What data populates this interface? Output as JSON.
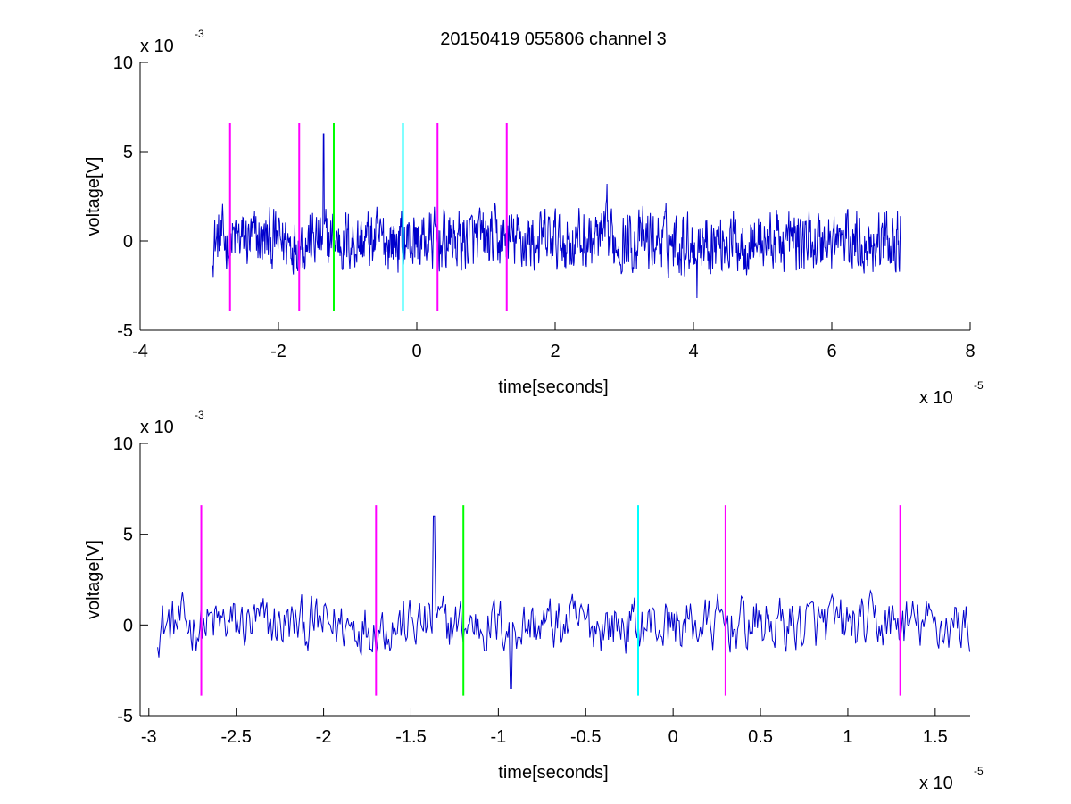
{
  "figure": {
    "title": "20150419 055806 channel 3",
    "background": "#ffffff"
  },
  "colors": {
    "signal": "#0000cc",
    "marker_magenta": "#ff00ff",
    "marker_green": "#00ff00",
    "marker_cyan": "#00ffff",
    "axes": "#000000"
  },
  "chart_data": [
    {
      "type": "line",
      "title": "20150419 055806 channel 3",
      "xlabel": "time[seconds]",
      "ylabel": "voltage[V]",
      "x_exponent_label": "x 10",
      "x_exponent": "-5",
      "y_exponent_label": "x 10",
      "y_exponent": "-3",
      "xlim": [
        -4,
        8
      ],
      "ylim": [
        -5,
        10
      ],
      "x_ticks": [
        -4,
        -2,
        0,
        2,
        4,
        6,
        8
      ],
      "x_tick_labels": [
        "-4",
        "-2",
        "0",
        "2",
        "4",
        "6",
        "8"
      ],
      "y_ticks": [
        -5,
        0,
        5,
        10
      ],
      "y_tick_labels": [
        "-5",
        "0",
        "5",
        "10"
      ],
      "grid": false,
      "series": [
        {
          "color": "#0000cc",
          "x_range": [
            -2.95,
            7.0
          ],
          "baseline": 0.0,
          "noise_std": 0.9,
          "notable_peaks": [
            {
              "x": -1.35,
              "y": 6.0
            },
            {
              "x": 2.75,
              "y": 3.2
            },
            {
              "x": 4.05,
              "y": -3.2
            }
          ]
        }
      ],
      "markers": [
        {
          "x": -2.7,
          "color": "magenta",
          "y_range": [
            -3.9,
            6.6
          ]
        },
        {
          "x": -1.7,
          "color": "magenta",
          "y_range": [
            -3.9,
            6.6
          ]
        },
        {
          "x": -1.2,
          "color": "green",
          "y_range": [
            -3.9,
            6.6
          ]
        },
        {
          "x": -0.2,
          "color": "cyan",
          "y_range": [
            -3.9,
            6.6
          ]
        },
        {
          "x": 0.3,
          "color": "magenta",
          "y_range": [
            -3.9,
            6.6
          ]
        },
        {
          "x": 1.3,
          "color": "magenta",
          "y_range": [
            -3.9,
            6.6
          ]
        }
      ]
    },
    {
      "type": "line",
      "title": "",
      "xlabel": "time[seconds]",
      "ylabel": "voltage[V]",
      "x_exponent_label": "x 10",
      "x_exponent": "-5",
      "y_exponent_label": "x 10",
      "y_exponent": "-3",
      "xlim": [
        -3.05,
        1.7
      ],
      "ylim": [
        -5,
        10
      ],
      "x_ticks": [
        -3,
        -2.5,
        -2,
        -1.5,
        -1,
        -0.5,
        0,
        0.5,
        1,
        1.5
      ],
      "x_tick_labels": [
        "-3",
        "-2.5",
        "-2",
        "-1.5",
        "-1",
        "-0.5",
        "0",
        "0.5",
        "1",
        "1.5"
      ],
      "y_ticks": [
        -5,
        0,
        5,
        10
      ],
      "y_tick_labels": [
        "-5",
        "0",
        "5",
        "10"
      ],
      "grid": false,
      "series": [
        {
          "color": "#0000cc",
          "x_range": [
            -2.95,
            1.7
          ],
          "baseline": 0.0,
          "noise_std": 0.8,
          "notable_peaks": [
            {
              "x": -1.37,
              "y": 6.0
            },
            {
              "x": -0.93,
              "y": -3.5
            }
          ]
        }
      ],
      "markers": [
        {
          "x": -2.7,
          "color": "magenta",
          "y_range": [
            -3.9,
            6.6
          ]
        },
        {
          "x": -1.7,
          "color": "magenta",
          "y_range": [
            -3.9,
            6.6
          ]
        },
        {
          "x": -1.2,
          "color": "green",
          "y_range": [
            -3.9,
            6.6
          ]
        },
        {
          "x": -0.2,
          "color": "cyan",
          "y_range": [
            -3.9,
            6.6
          ]
        },
        {
          "x": 0.3,
          "color": "magenta",
          "y_range": [
            -3.9,
            6.6
          ]
        },
        {
          "x": 1.3,
          "color": "magenta",
          "y_range": [
            -3.9,
            6.6
          ]
        }
      ]
    }
  ]
}
